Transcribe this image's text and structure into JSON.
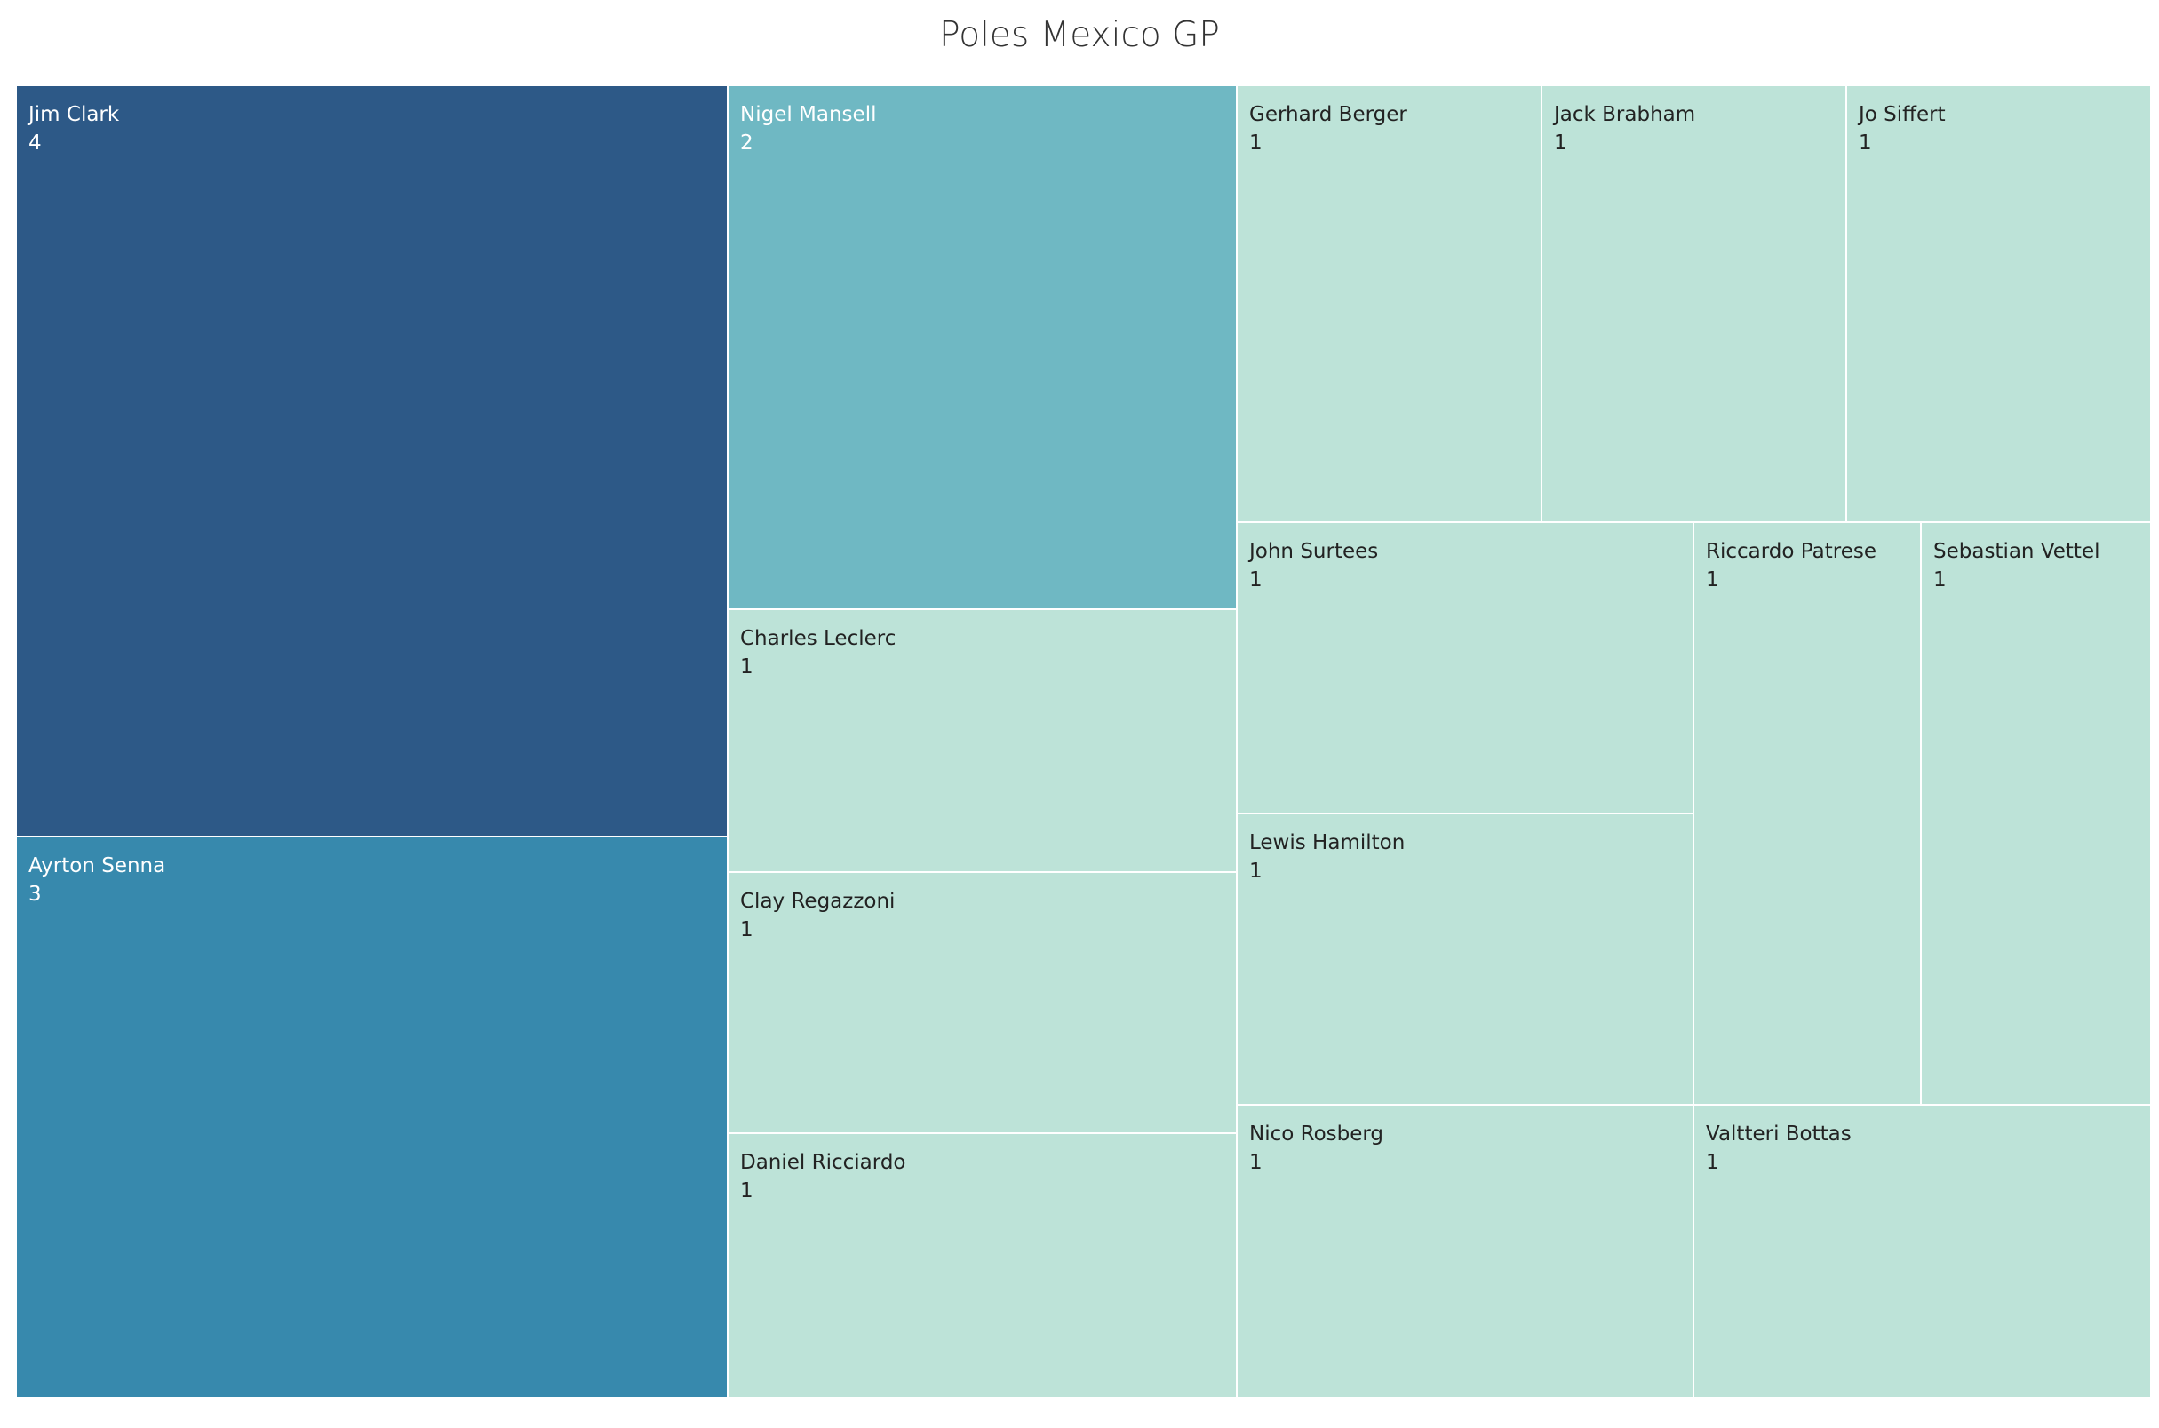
{
  "chart_data": {
    "type": "treemap",
    "title": "Poles Mexico GP",
    "color_scale": [
      "#bde3d8",
      "#6fb8c3",
      "#3789ad",
      "#2d5987"
    ],
    "items": [
      {
        "name": "Jim Clark",
        "value": 4,
        "color": "#2d5987"
      },
      {
        "name": "Ayrton Senna",
        "value": 3,
        "color": "#3789ad"
      },
      {
        "name": "Nigel Mansell",
        "value": 2,
        "color": "#6fb8c3"
      },
      {
        "name": "Charles Leclerc",
        "value": 1,
        "color": "#bde3d8"
      },
      {
        "name": "Clay Regazzoni",
        "value": 1,
        "color": "#bde3d8"
      },
      {
        "name": "Daniel Ricciardo",
        "value": 1,
        "color": "#bde3d8"
      },
      {
        "name": "Gerhard Berger",
        "value": 1,
        "color": "#bde3d8"
      },
      {
        "name": "Jack Brabham",
        "value": 1,
        "color": "#bde3d8"
      },
      {
        "name": "Jo Siffert",
        "value": 1,
        "color": "#bde3d8"
      },
      {
        "name": "John Surtees",
        "value": 1,
        "color": "#bde3d8"
      },
      {
        "name": "Lewis Hamilton",
        "value": 1,
        "color": "#bde3d8"
      },
      {
        "name": "Riccardo Patrese",
        "value": 1,
        "color": "#bde3d8"
      },
      {
        "name": "Sebastian Vettel",
        "value": 1,
        "color": "#bde3d8"
      },
      {
        "name": "Nico Rosberg",
        "value": 1,
        "color": "#bde3d8"
      },
      {
        "name": "Valtteri Bottas",
        "value": 1,
        "color": "#bde3d8"
      }
    ]
  }
}
